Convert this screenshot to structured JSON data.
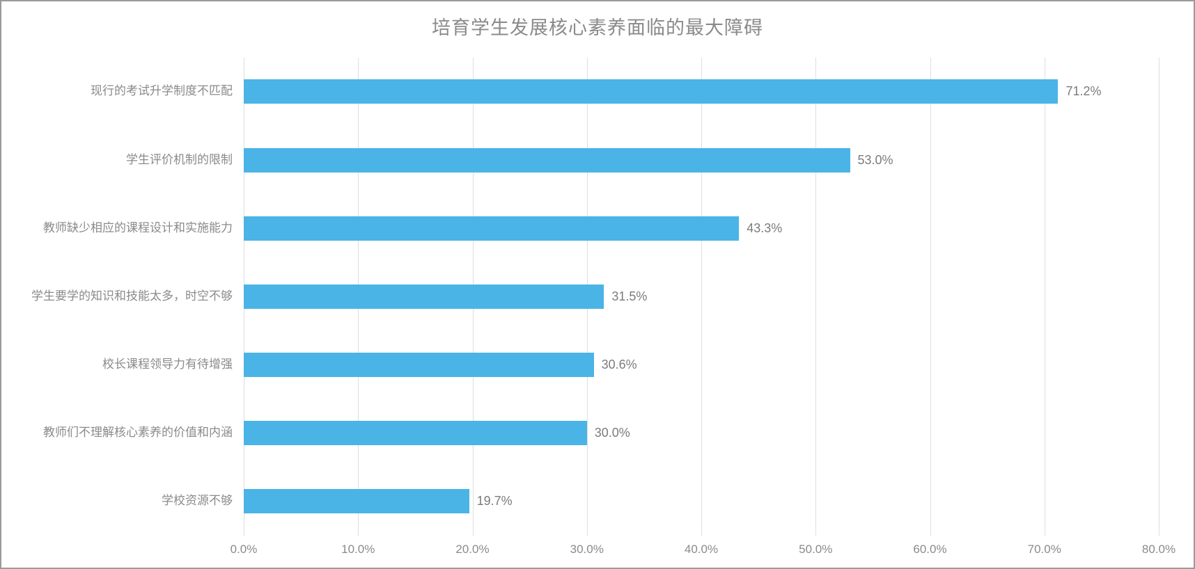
{
  "chart_data": {
    "type": "bar",
    "orientation": "horizontal",
    "title": "培育学生发展核心素养面临的最大障碍",
    "categories": [
      "现行的考试升学制度不匹配",
      "学生评价机制的限制",
      "教师缺少相应的课程设计和实施能力",
      "学生要学的知识和技能太多，时空不够",
      "校长课程领导力有待增强",
      "教师们不理解核心素养的价值和内涵",
      "学校资源不够"
    ],
    "values": [
      71.2,
      53.0,
      43.3,
      31.5,
      30.6,
      30.0,
      19.7
    ],
    "value_labels": [
      "71.2%",
      "53.0%",
      "43.3%",
      "31.5%",
      "30.6%",
      "30.0%",
      "19.7%"
    ],
    "xlabel": "",
    "ylabel": "",
    "xlim": [
      0,
      80
    ],
    "x_ticks": [
      "0.0%",
      "10.0%",
      "20.0%",
      "30.0%",
      "40.0%",
      "50.0%",
      "60.0%",
      "70.0%",
      "80.0%"
    ],
    "grid": "vertical",
    "legend": "none",
    "bar_color": "#4ab4e6"
  }
}
